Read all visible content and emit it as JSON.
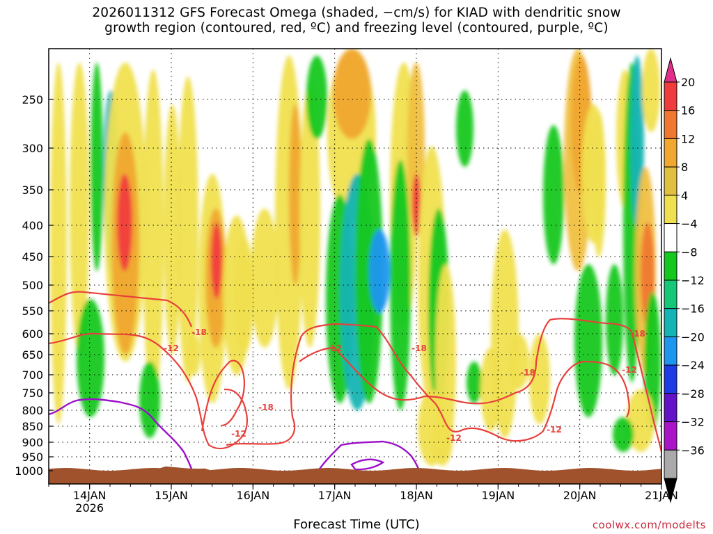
{
  "title": {
    "line1": "2026011312 GFS Forecast Omega (shaded, −cm/s) for KIAD with dendritic snow",
    "line2": "growth region (contoured, red, ºC) and freezing level (contoured, purple, ºC)"
  },
  "xlabel": "Forecast Time (UTC)",
  "credit": "coolwx.com/modelts",
  "chart_data": {
    "type": "heatmap",
    "x_axis": {
      "label": "Forecast Time (UTC)",
      "ticks": [
        {
          "day": 14,
          "label": "14JAN",
          "sublabel": "2026"
        },
        {
          "day": 15,
          "label": "15JAN",
          "sublabel": ""
        },
        {
          "day": 16,
          "label": "16JAN",
          "sublabel": ""
        },
        {
          "day": 17,
          "label": "17JAN",
          "sublabel": ""
        },
        {
          "day": 18,
          "label": "18JAN",
          "sublabel": ""
        },
        {
          "day": 19,
          "label": "19JAN",
          "sublabel": ""
        },
        {
          "day": 20,
          "label": "20JAN",
          "sublabel": ""
        },
        {
          "day": 21,
          "label": "21JAN",
          "sublabel": ""
        }
      ],
      "range_days": [
        13.5,
        21.0
      ]
    },
    "y_axis": {
      "label": "",
      "unit": "hPa",
      "ticks": [
        "250",
        "300",
        "350",
        "400",
        "450",
        "500",
        "550",
        "600",
        "650",
        "700",
        "750",
        "800",
        "850",
        "900",
        "950",
        "1000"
      ],
      "range": [
        200,
        1025
      ],
      "inverted": true
    },
    "colorbar": {
      "labels": [
        "20",
        "16",
        "12",
        "8",
        "4",
        "−4",
        "−8",
        "−12",
        "−16",
        "−20",
        "−24",
        "−28",
        "−32",
        "−36"
      ],
      "colors": [
        "#e0308a",
        "#f03c3c",
        "#f07830",
        "#f0a830",
        "#e0c040",
        "#f0e050",
        "#ffffff",
        "#14c81e",
        "#14c878",
        "#14b4b4",
        "#1e96f0",
        "#1e3ce6",
        "#6414c8",
        "#aa14c8",
        "#aaaaaa",
        "#000000"
      ]
    },
    "contour_labels": [
      {
        "value": "-18",
        "color": "#e8403c"
      },
      {
        "value": "-12",
        "color": "#e8403c"
      }
    ],
    "surface_color": "#a0522d",
    "grid": true
  }
}
